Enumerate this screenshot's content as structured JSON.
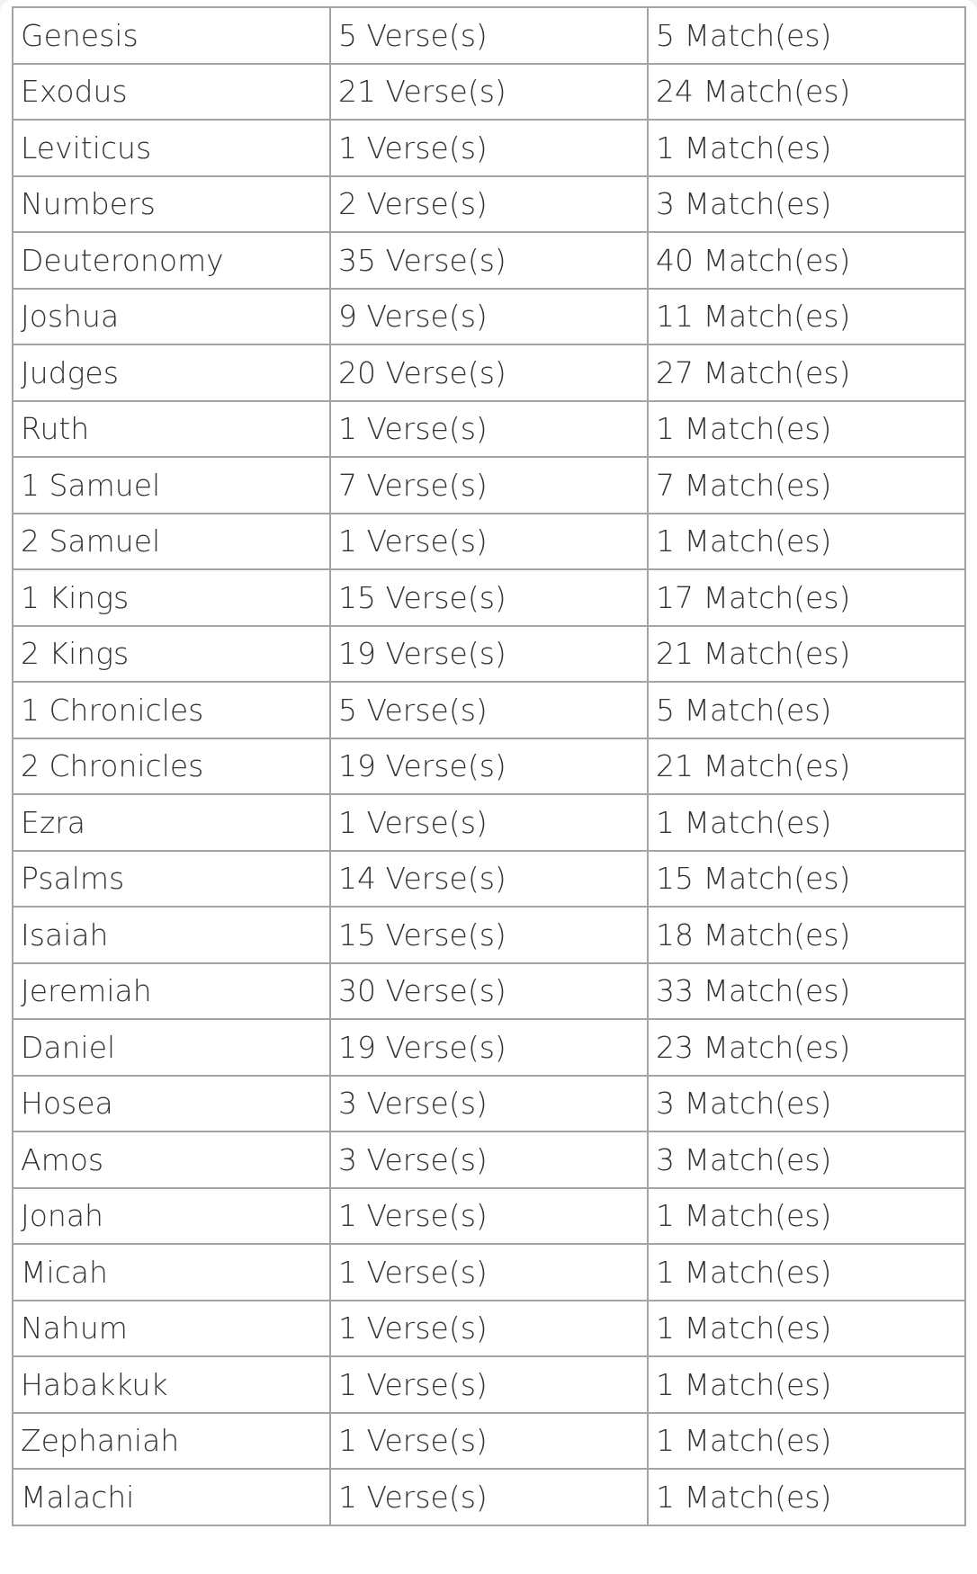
{
  "rows": [
    {
      "book": "Genesis",
      "verses": "5 Verse(s)",
      "matches": "5 Match(es)"
    },
    {
      "book": "Exodus",
      "verses": "21 Verse(s)",
      "matches": "24 Match(es)"
    },
    {
      "book": "Leviticus",
      "verses": "1 Verse(s)",
      "matches": "1 Match(es)"
    },
    {
      "book": "Numbers",
      "verses": "2 Verse(s)",
      "matches": "3 Match(es)"
    },
    {
      "book": "Deuteronomy",
      "verses": "35 Verse(s)",
      "matches": "40 Match(es)"
    },
    {
      "book": "Joshua",
      "verses": "9 Verse(s)",
      "matches": "11 Match(es)"
    },
    {
      "book": "Judges",
      "verses": "20 Verse(s)",
      "matches": "27 Match(es)"
    },
    {
      "book": "Ruth",
      "verses": "1 Verse(s)",
      "matches": "1 Match(es)"
    },
    {
      "book": "1 Samuel",
      "verses": "7 Verse(s)",
      "matches": "7 Match(es)"
    },
    {
      "book": "2 Samuel",
      "verses": "1 Verse(s)",
      "matches": "1 Match(es)"
    },
    {
      "book": "1 Kings",
      "verses": "15 Verse(s)",
      "matches": "17 Match(es)"
    },
    {
      "book": "2 Kings",
      "verses": "19 Verse(s)",
      "matches": "21 Match(es)"
    },
    {
      "book": "1 Chronicles",
      "verses": "5 Verse(s)",
      "matches": "5 Match(es)"
    },
    {
      "book": "2 Chronicles",
      "verses": "19 Verse(s)",
      "matches": "21 Match(es)"
    },
    {
      "book": "Ezra",
      "verses": "1 Verse(s)",
      "matches": "1 Match(es)"
    },
    {
      "book": "Psalms",
      "verses": "14 Verse(s)",
      "matches": "15 Match(es)"
    },
    {
      "book": "Isaiah",
      "verses": "15 Verse(s)",
      "matches": "18 Match(es)"
    },
    {
      "book": "Jeremiah",
      "verses": "30 Verse(s)",
      "matches": "33 Match(es)"
    },
    {
      "book": "Daniel",
      "verses": "19 Verse(s)",
      "matches": "23 Match(es)"
    },
    {
      "book": "Hosea",
      "verses": "3 Verse(s)",
      "matches": "3 Match(es)"
    },
    {
      "book": "Amos",
      "verses": "3 Verse(s)",
      "matches": "3 Match(es)"
    },
    {
      "book": "Jonah",
      "verses": "1 Verse(s)",
      "matches": "1 Match(es)"
    },
    {
      "book": "Micah",
      "verses": "1 Verse(s)",
      "matches": "1 Match(es)"
    },
    {
      "book": "Nahum",
      "verses": "1 Verse(s)",
      "matches": "1 Match(es)"
    },
    {
      "book": "Habakkuk",
      "verses": "1 Verse(s)",
      "matches": "1 Match(es)"
    },
    {
      "book": "Zephaniah",
      "verses": "1 Verse(s)",
      "matches": "1 Match(es)"
    },
    {
      "book": "Malachi",
      "verses": "1 Verse(s)",
      "matches": "1 Match(es)"
    }
  ]
}
